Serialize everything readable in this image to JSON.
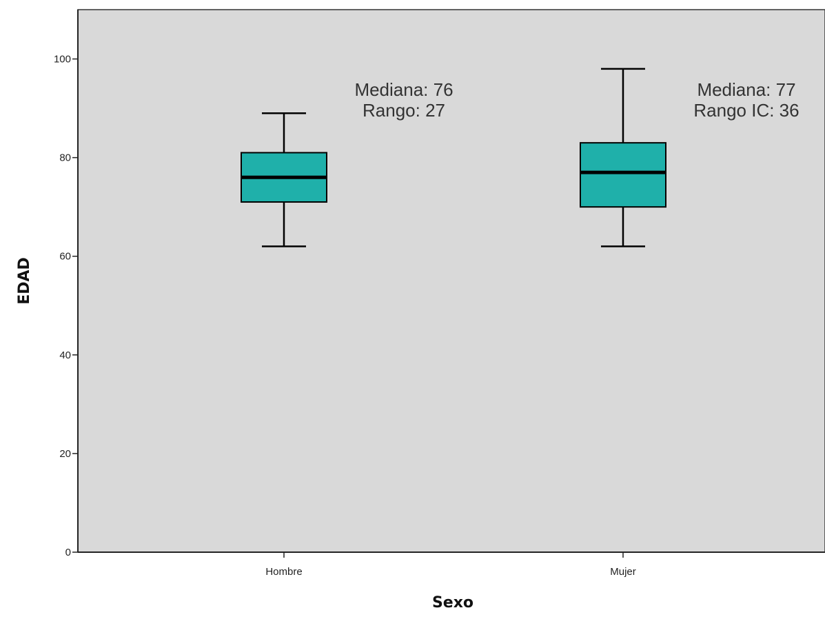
{
  "chart_data": {
    "type": "boxplot",
    "title": "",
    "xlabel": "Sexo",
    "ylabel": "EDAD",
    "ylim": [
      0,
      110
    ],
    "yticks": [
      0,
      20,
      40,
      60,
      80,
      100
    ],
    "grid": false,
    "categories": [
      "Hombre",
      "Mujer"
    ],
    "boxes": [
      {
        "category": "Hombre",
        "min": 62,
        "q1": 71,
        "median": 76,
        "q3": 81,
        "max": 89
      },
      {
        "category": "Mujer",
        "min": 62,
        "q1": 70,
        "median": 77,
        "q3": 83,
        "max": 98
      }
    ],
    "annotations": [
      {
        "category": "Hombre",
        "lines": [
          "Mediana: 76",
          "Rango: 27"
        ]
      },
      {
        "category": "Mujer",
        "lines": [
          "Mediana: 77",
          "Rango IC: 36"
        ]
      }
    ],
    "colors": {
      "plot_background": "#d9d9d9",
      "box_fill": "#1fb0aa",
      "stroke": "#000000"
    }
  }
}
